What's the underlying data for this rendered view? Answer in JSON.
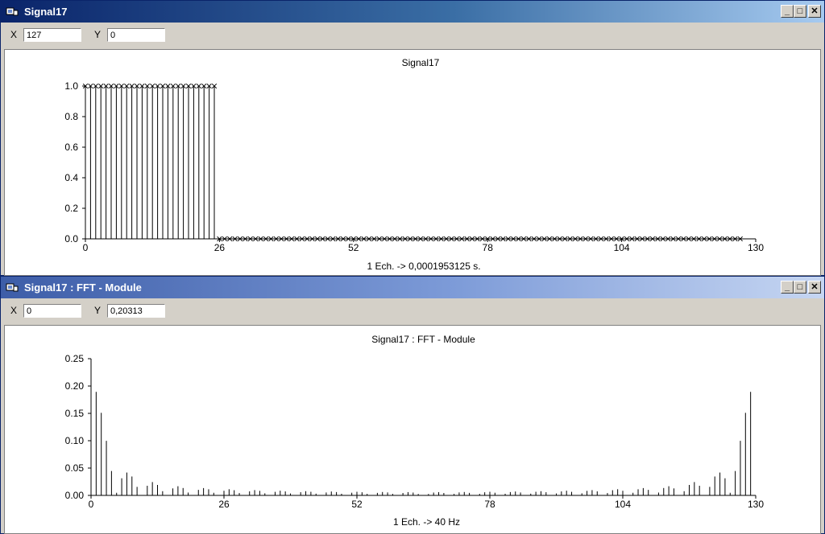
{
  "window1": {
    "title": "Signal17",
    "x_label": "X",
    "x_value": "127",
    "y_label": "Y",
    "y_value": "0"
  },
  "window2": {
    "title": "Signal17 : FFT - Module",
    "x_label": "X",
    "x_value": "0",
    "y_label": "Y",
    "y_value": "0,20313"
  },
  "chart_data": [
    {
      "type": "stem",
      "title": "Signal17",
      "xlabel": "1 Ech. -> 0,0001953125 s.",
      "ylabel": "",
      "xlim": [
        0,
        130
      ],
      "ylim": [
        0,
        1.0
      ],
      "xticks": [
        "0",
        "26",
        "52",
        "78",
        "104",
        "130"
      ],
      "yticks": [
        "1.0",
        "0.8",
        "0.6",
        "0.4",
        "0.2",
        "0.0"
      ],
      "marker": "x",
      "x_start": 0,
      "values": [
        1,
        1,
        1,
        1,
        1,
        1,
        1,
        1,
        1,
        1,
        1,
        1,
        1,
        1,
        1,
        1,
        1,
        1,
        1,
        1,
        1,
        1,
        1,
        1,
        1,
        1,
        0,
        0,
        0,
        0,
        0,
        0,
        0,
        0,
        0,
        0,
        0,
        0,
        0,
        0,
        0,
        0,
        0,
        0,
        0,
        0,
        0,
        0,
        0,
        0,
        0,
        0,
        0,
        0,
        0,
        0,
        0,
        0,
        0,
        0,
        0,
        0,
        0,
        0,
        0,
        0,
        0,
        0,
        0,
        0,
        0,
        0,
        0,
        0,
        0,
        0,
        0,
        0,
        0,
        0,
        0,
        0,
        0,
        0,
        0,
        0,
        0,
        0,
        0,
        0,
        0,
        0,
        0,
        0,
        0,
        0,
        0,
        0,
        0,
        0,
        0,
        0,
        0,
        0,
        0,
        0,
        0,
        0,
        0,
        0,
        0,
        0,
        0,
        0,
        0,
        0,
        0,
        0,
        0,
        0,
        0,
        0,
        0,
        0,
        0,
        0,
        0,
        0
      ]
    },
    {
      "type": "stem",
      "title": "Signal17 : FFT - Module",
      "xlabel": "1 Ech. -> 40 Hz",
      "ylabel": "",
      "xlim": [
        0,
        130
      ],
      "ylim": [
        0,
        0.25
      ],
      "xticks": [
        "0",
        "26",
        "52",
        "78",
        "104",
        "130"
      ],
      "yticks": [
        "0.25",
        "0.20",
        "0.15",
        "0.10",
        "0.05",
        "0.00"
      ],
      "marker": "none",
      "x_start": 0,
      "values": [
        0.2031,
        0.1894,
        0.151,
        0.0998,
        0.0446,
        0.0048,
        0.0313,
        0.0418,
        0.0346,
        0.0156,
        0,
        0.0176,
        0.0244,
        0.0191,
        0.0077,
        0,
        0.0128,
        0.0168,
        0.0135,
        0.0052,
        0,
        0.0101,
        0.0134,
        0.0112,
        0.0048,
        0,
        0.0085,
        0.0113,
        0.0095,
        0.0043,
        0,
        0.0074,
        0.0097,
        0.0083,
        0.0038,
        0,
        0.0065,
        0.0086,
        0.0073,
        0.0035,
        0,
        0.0058,
        0.0077,
        0.0066,
        0.0032,
        0,
        0.0053,
        0.0071,
        0.0061,
        0.003,
        0,
        0.0049,
        0.0066,
        0.0057,
        0.0028,
        0,
        0.0046,
        0.0062,
        0.0054,
        0.0027,
        0,
        0.0044,
        0.006,
        0.0052,
        0.0026,
        0,
        0.0026,
        0.0052,
        0.006,
        0.0044,
        0,
        0.0027,
        0.0054,
        0.0062,
        0.0046,
        0,
        0.0028,
        0.0057,
        0.0066,
        0.0049,
        0,
        0.003,
        0.0061,
        0.0071,
        0.0053,
        0,
        0.0032,
        0.0066,
        0.0077,
        0.0058,
        0,
        0.0035,
        0.0073,
        0.0086,
        0.0065,
        0,
        0.0038,
        0.0083,
        0.0097,
        0.0074,
        0,
        0.0043,
        0.0095,
        0.0113,
        0.0085,
        0,
        0.0048,
        0.0112,
        0.0134,
        0.0101,
        0,
        0.0052,
        0.0135,
        0.0168,
        0.0128,
        0,
        0.0077,
        0.0191,
        0.0244,
        0.0176,
        0,
        0.0156,
        0.0346,
        0.0418,
        0.0313,
        0.0048,
        0.0446,
        0.0998,
        0.151,
        0.1894
      ]
    }
  ]
}
